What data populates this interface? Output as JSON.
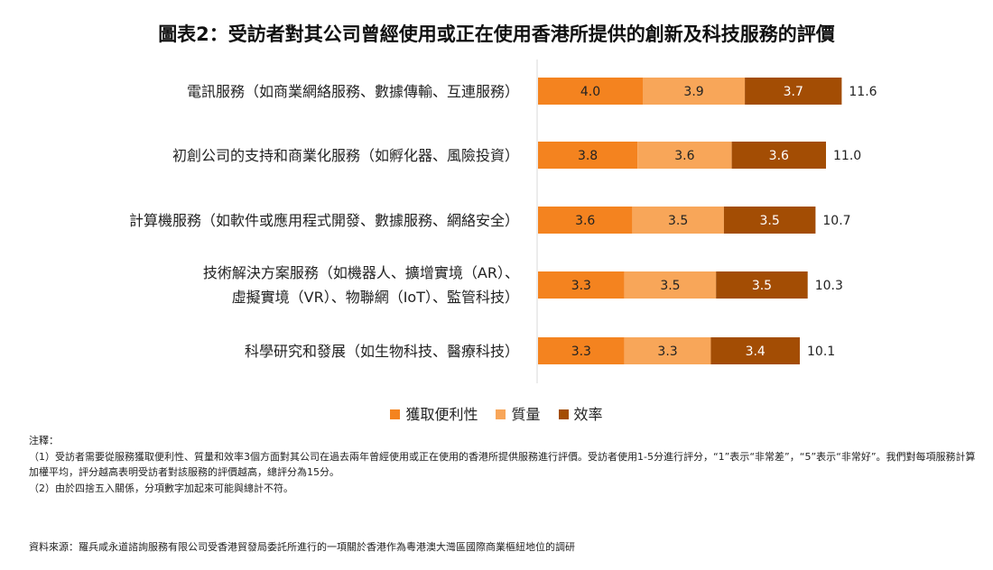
{
  "title": "圖表2：受訪者對其公司曾經使用或正在使用香港所提供的創新及科技服務的評價",
  "chart_data": {
    "type": "bar",
    "orientation": "horizontal",
    "stacked": true,
    "categories": [
      [
        "電訊服務（如商業網絡服務、數據傳輸、互連服務）"
      ],
      [
        "初創公司的支持和商業化服務（如孵化器、風險投資）"
      ],
      [
        "計算機服務（如軟件或應用程式開發、數據服務、網絡安全）"
      ],
      [
        "技術解決方案服務（如機器人、擴增實境（AR）、",
        "虛擬實境（VR）、物聯網（IoT）、監管科技）"
      ],
      [
        "科學研究和發展（如生物科技、醫療科技）"
      ]
    ],
    "series": [
      {
        "name": "獲取便利性",
        "color": "#f4831f",
        "values": [
          4.0,
          3.8,
          3.6,
          3.3,
          3.3
        ],
        "labels": [
          "4.0",
          "3.8",
          "3.6",
          "3.3",
          "3.3"
        ]
      },
      {
        "name": "質量",
        "color": "#f8a659",
        "values": [
          3.9,
          3.6,
          3.5,
          3.5,
          3.3
        ],
        "labels": [
          "3.9",
          "3.6",
          "3.5",
          "3.5",
          "3.3"
        ]
      },
      {
        "name": "效率",
        "color": "#a34d04",
        "values": [
          3.7,
          3.6,
          3.5,
          3.5,
          3.4
        ],
        "labels": [
          "3.7",
          "3.6",
          "3.5",
          "3.5",
          "3.4"
        ]
      }
    ],
    "totals": [
      "11.6",
      "11.0",
      "10.7",
      "10.3",
      "10.1"
    ],
    "legend_position": "bottom",
    "grid": false
  },
  "notes": {
    "heading": "注釋：",
    "lines": [
      "（1）受訪者需要從服務獲取便利性、質量和效率3個方面對其公司在過去兩年曾經使用或正在使用的香港所提供服務進行評價。受訪者使用1-5分進行評分，“1”表示“非常差”，“5”表示“非常好”。我們對每項服務計算加權平均，評分越高表明受訪者對該服務的評價越高，總評分為15分。",
      "（2）由於四捨五入關係，分項數字加起來可能與總計不符。"
    ]
  },
  "source": "資料來源：羅兵咸永道諮詢服務有限公司受香港貿發局委託所進行的一項關於香港作為粵港澳大灣區國際商業樞紐地位的調研"
}
